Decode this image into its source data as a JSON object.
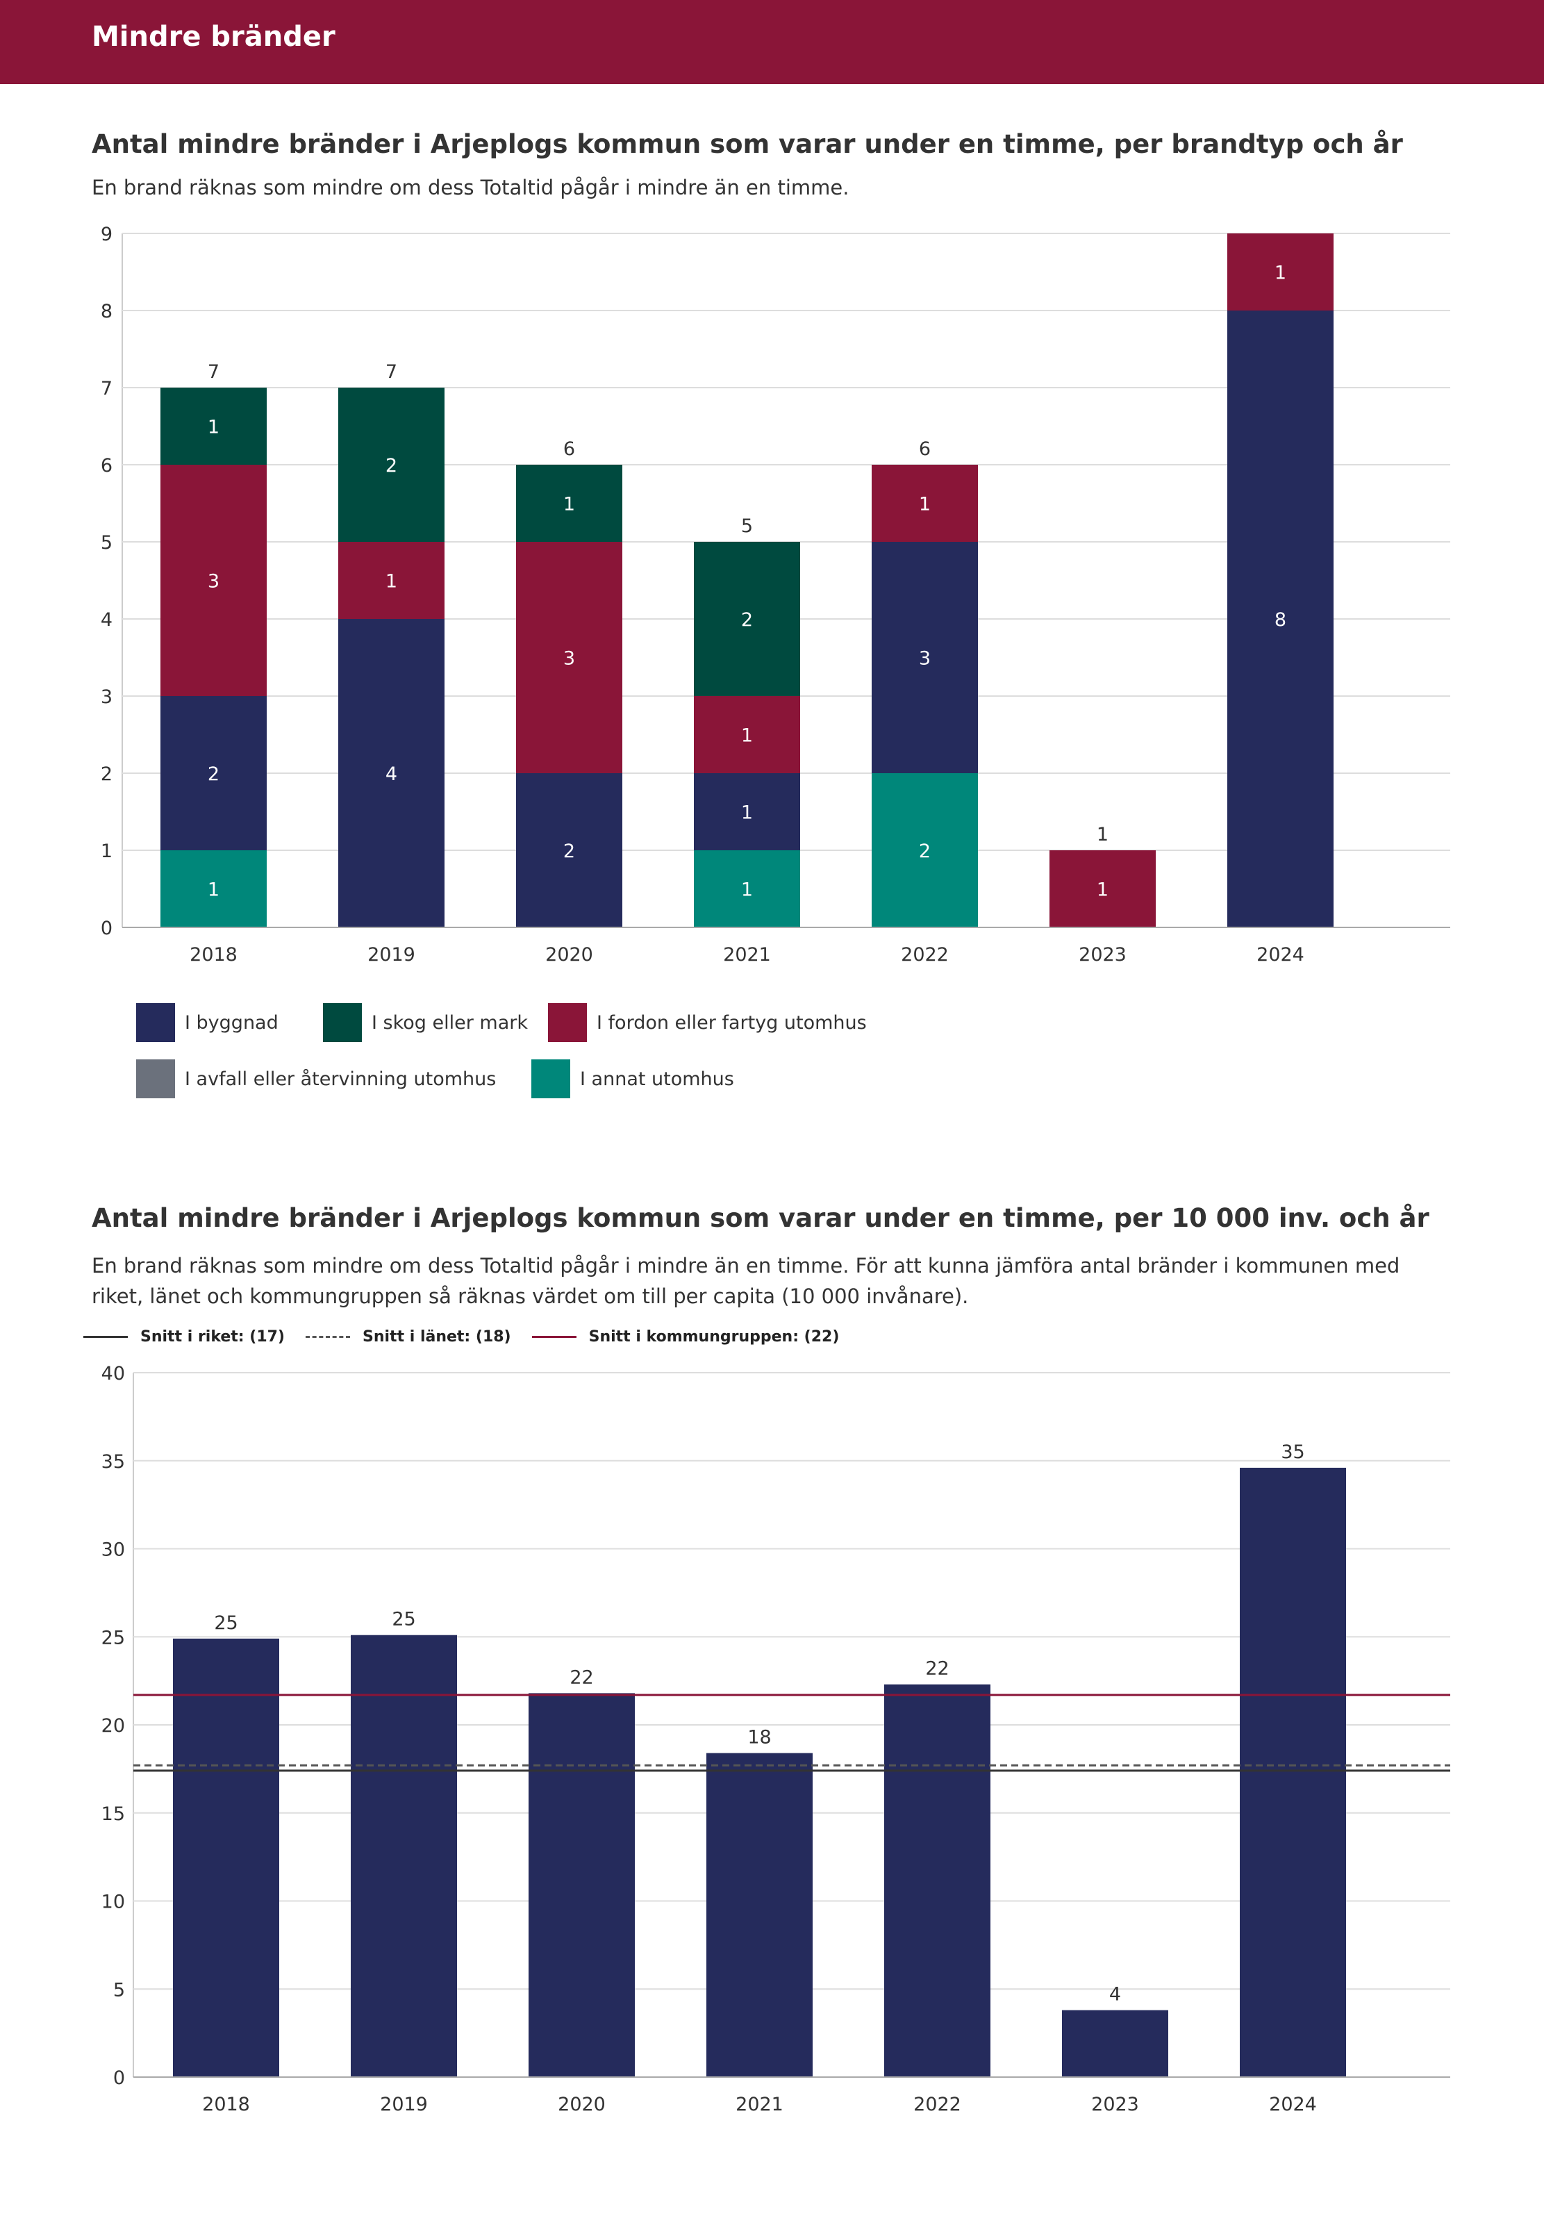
{
  "header": {
    "title": "Mindre bränder"
  },
  "chart1": {
    "title": "Antal mindre bränder i Arjeplogs kommun som varar under en timme, per brandtyp och år",
    "subtitle": "En brand räknas som mindre om dess Totaltid pågår i mindre än en timme."
  },
  "chart2": {
    "title": "Antal mindre bränder i Arjeplogs kommun som varar under en timme, per 10 000 inv. och år",
    "subtitle": "En brand räknas som mindre om dess Totaltid pågår i mindre än en timme. För att kunna jämföra antal bränder i kommunen med riket, länet och kommungruppen så räknas värdet om till per capita (10 000 invånare)."
  },
  "colors": {
    "byggnad": "#252b5c",
    "skog": "#004a3f",
    "fordon": "#8a1538",
    "avfall": "#6b717c",
    "annat": "#00877a",
    "bar2": "#252b5c",
    "riket": "#333333",
    "lanet": "#555555",
    "kommungrupp": "#8a1538"
  },
  "chart_data": [
    {
      "type": "bar",
      "stacked": true,
      "title": "Antal mindre bränder i Arjeplogs kommun som varar under en timme, per brandtyp och år",
      "categories": [
        "2018",
        "2019",
        "2020",
        "2021",
        "2022",
        "2023",
        "2024"
      ],
      "series": [
        {
          "name": "I annat utomhus",
          "key": "annat",
          "values": [
            1,
            0,
            0,
            1,
            2,
            0,
            0
          ]
        },
        {
          "name": "I avfall eller återvinning utomhus",
          "key": "avfall",
          "values": [
            0,
            0,
            0,
            0,
            0,
            0,
            0
          ]
        },
        {
          "name": "I byggnad",
          "key": "byggnad",
          "values": [
            2,
            4,
            2,
            1,
            3,
            0,
            8
          ]
        },
        {
          "name": "I fordon eller fartyg utomhus",
          "key": "fordon",
          "values": [
            3,
            1,
            3,
            1,
            1,
            1,
            1
          ]
        },
        {
          "name": "I skog eller mark",
          "key": "skog",
          "values": [
            1,
            2,
            1,
            2,
            0,
            0,
            0
          ]
        }
      ],
      "totals": [
        7,
        7,
        6,
        5,
        6,
        1,
        9
      ],
      "total_labels": [
        "7",
        "7",
        "6",
        "5",
        "6",
        "1",
        ""
      ],
      "yticks": [
        "0",
        "1",
        "2",
        "3",
        "4",
        "5",
        "6",
        "7",
        "8",
        "9"
      ],
      "ylim": [
        0,
        9
      ],
      "legend": [
        [
          "I byggnad",
          "I skog eller mark",
          "I fordon eller fartyg utomhus"
        ],
        [
          "I avfall eller återvinning utomhus",
          "I annat utomhus"
        ]
      ]
    },
    {
      "type": "bar",
      "title": "Antal mindre bränder i Arjeplogs kommun som varar under en timme, per 10 000 inv. och år",
      "categories": [
        "2018",
        "2019",
        "2020",
        "2021",
        "2022",
        "2023",
        "2024"
      ],
      "values": [
        24.9,
        25.1,
        21.8,
        18.4,
        22.3,
        3.8,
        34.6
      ],
      "value_labels": [
        "25",
        "25",
        "22",
        "18",
        "22",
        "4",
        "35"
      ],
      "yticks": [
        "0",
        "5",
        "10",
        "15",
        "20",
        "25",
        "30",
        "35",
        "40"
      ],
      "ylim": [
        0,
        40
      ],
      "reference_lines": [
        {
          "label": "Snitt i riket: (17)",
          "value": 17.4,
          "style": "solid",
          "key": "riket"
        },
        {
          "label": "Snitt i länet: (18)",
          "value": 17.7,
          "style": "dashed",
          "key": "lanet"
        },
        {
          "label": "Snitt i kommungruppen: (22)",
          "value": 21.7,
          "style": "solid",
          "key": "kommungrupp"
        }
      ]
    }
  ]
}
